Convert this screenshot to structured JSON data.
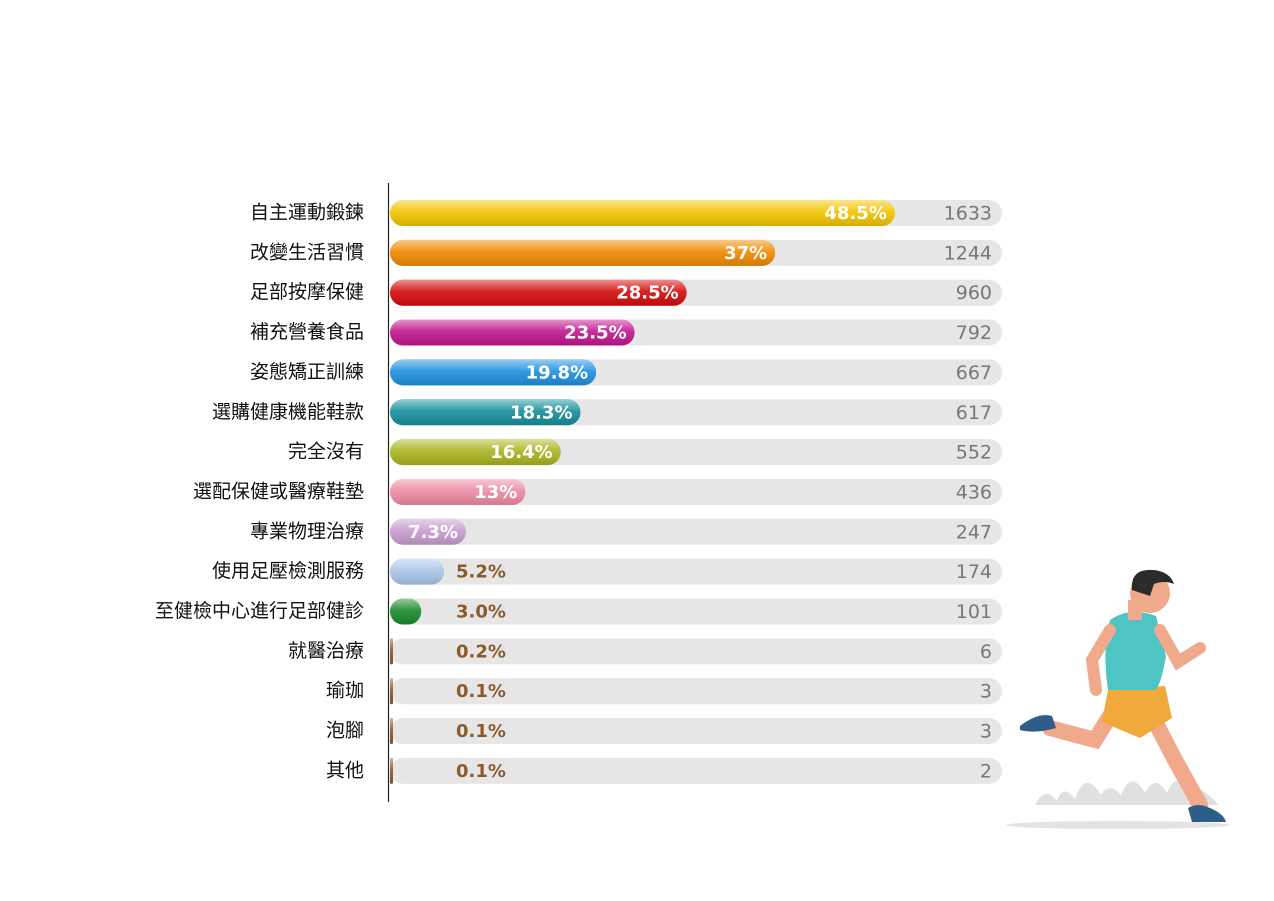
{
  "chart_data": {
    "type": "bar",
    "categories": [
      "自主運動鍛鍊",
      "改變生活習慣",
      "足部按摩保健",
      "補充營養食品",
      "姿態矯正訓練",
      "選購健康機能鞋款",
      "完全沒有",
      "選配保健或醫療鞋墊",
      "專業物理治療",
      "使用足壓檢測服務",
      "至健檢中心進行足部健診",
      "就醫治療",
      "瑜珈",
      "泡腳",
      "其他"
    ],
    "values": [
      48.5,
      37,
      28.5,
      23.5,
      19.8,
      18.3,
      16.4,
      13,
      7.3,
      5.2,
      3.0,
      0.2,
      0.1,
      0.1,
      0.1
    ],
    "value_labels": [
      "48.5%",
      "37%",
      "28.5%",
      "23.5%",
      "19.8%",
      "18.3%",
      "16.4%",
      "13%",
      "7.3%",
      "5.2%",
      "3.0%",
      "0.2%",
      "0.1%",
      "0.1%",
      "0.1%"
    ],
    "counts": [
      1633,
      1244,
      960,
      792,
      667,
      617,
      552,
      436,
      247,
      174,
      101,
      6,
      3,
      3,
      2
    ],
    "colors": [
      "#f2c400",
      "#f08800",
      "#d40a0a",
      "#c2158e",
      "#1e8fe0",
      "#14909c",
      "#a9b41e",
      "#ec8aa2",
      "#c89ccf",
      "#a8c6ea",
      "#1a8a2c",
      "#8b5a2b",
      "#8b5a2b",
      "#8b5a2b",
      "#8b5a2b"
    ]
  }
}
